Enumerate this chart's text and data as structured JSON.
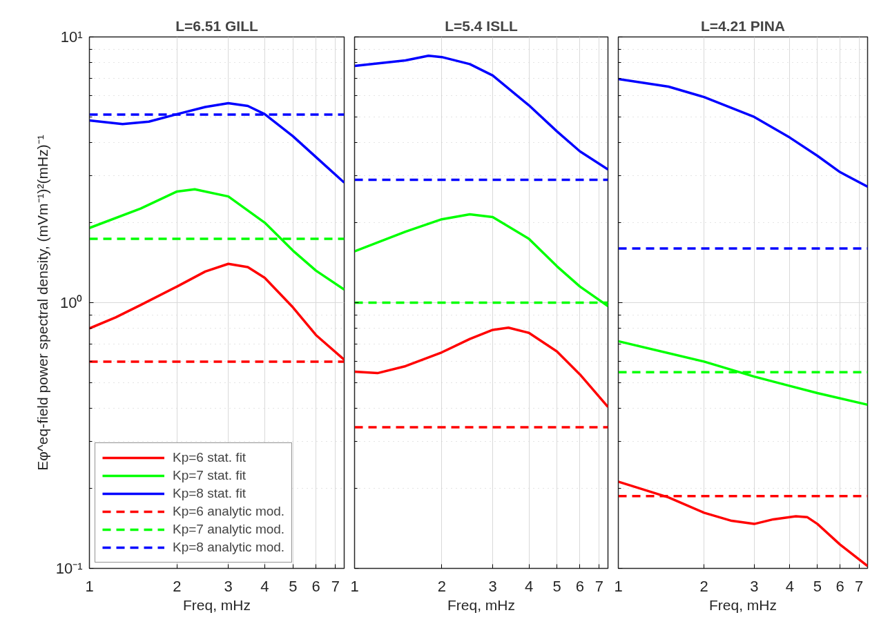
{
  "chart_data": [
    {
      "type": "line",
      "title": "L=6.51 GILL",
      "xlabel": "Freq, mHz",
      "ylabel": "Eφ^eq-field power spectral density, (mVm⁻¹)²(mHz)⁻¹",
      "log": "xy",
      "grid": true,
      "legend": "bottom left",
      "xlim": [
        1,
        7.5
      ],
      "ylim": [
        0.1,
        10
      ],
      "xticks": [
        1,
        2,
        3,
        4,
        5,
        6,
        7
      ],
      "yticks": [
        {
          "value": 0.1,
          "label": "10⁻¹"
        },
        {
          "value": 1,
          "label": "10⁰"
        },
        {
          "value": 10,
          "label": "10¹"
        }
      ],
      "series": [
        {
          "name": "Kp=6 stat. fit",
          "color": "#ff0000",
          "line_style": "solid",
          "x": [
            1,
            1.23,
            1.5,
            2,
            2.5,
            3,
            3.5,
            4,
            5,
            6,
            7.5
          ],
          "values": [
            0.8,
            0.88,
            0.98,
            1.15,
            1.31,
            1.4,
            1.36,
            1.24,
            0.96,
            0.755,
            0.61
          ]
        },
        {
          "name": "Kp=7 stat. fit",
          "color": "#00ff00",
          "line_style": "solid",
          "x": [
            1,
            1.5,
            2,
            2.3,
            3,
            4,
            5,
            6,
            7.5
          ],
          "values": [
            1.91,
            2.26,
            2.62,
            2.67,
            2.51,
            2.0,
            1.57,
            1.32,
            1.12
          ]
        },
        {
          "name": "Kp=8 stat. fit",
          "color": "#0000ff",
          "line_style": "solid",
          "x": [
            1,
            1.3,
            1.6,
            2,
            2.5,
            3,
            3.5,
            4,
            5,
            6,
            7.5
          ],
          "values": [
            4.85,
            4.7,
            4.8,
            5.12,
            5.45,
            5.63,
            5.5,
            5.12,
            4.23,
            3.53,
            2.83
          ]
        },
        {
          "name": "Kp=6 analytic mod.",
          "color": "#ff0000",
          "line_style": "dashed",
          "x": [
            1,
            7.5
          ],
          "values": [
            0.6,
            0.6
          ]
        },
        {
          "name": "Kp=7 analytic mod.",
          "color": "#00ff00",
          "line_style": "dashed",
          "x": [
            1,
            7.5
          ],
          "values": [
            1.74,
            1.74
          ]
        },
        {
          "name": "Kp=8 analytic mod.",
          "color": "#0000ff",
          "line_style": "dashed",
          "x": [
            1,
            7.5
          ],
          "values": [
            5.1,
            5.1
          ]
        }
      ]
    },
    {
      "type": "line",
      "title": "L=5.4 ISLL",
      "xlabel": "Freq, mHz",
      "log": "xy",
      "grid": true,
      "tick_labels": "x",
      "xlim": [
        1,
        7.5
      ],
      "ylim": [
        0.1,
        10
      ],
      "xticks": [
        1,
        2,
        3,
        4,
        5,
        6,
        7
      ],
      "yticks": [
        0.1,
        1,
        10
      ],
      "series": [
        {
          "color": "#ff0000",
          "line_style": "solid",
          "x": [
            1,
            1.2,
            1.5,
            2,
            2.5,
            3,
            3.4,
            4,
            5,
            6,
            7.5
          ],
          "values": [
            0.55,
            0.543,
            0.577,
            0.65,
            0.73,
            0.79,
            0.805,
            0.77,
            0.655,
            0.537,
            0.405
          ]
        },
        {
          "color": "#00ff00",
          "line_style": "solid",
          "x": [
            1,
            1.5,
            2,
            2.5,
            3,
            4,
            5,
            6,
            7.5
          ],
          "values": [
            1.56,
            1.85,
            2.06,
            2.15,
            2.1,
            1.74,
            1.37,
            1.15,
            0.97
          ]
        },
        {
          "color": "#0000ff",
          "line_style": "solid",
          "x": [
            1,
            1.5,
            1.8,
            2,
            2.5,
            3,
            4,
            5,
            6,
            7.5
          ],
          "values": [
            7.78,
            8.16,
            8.5,
            8.4,
            7.9,
            7.16,
            5.53,
            4.41,
            3.71,
            3.17
          ]
        },
        {
          "color": "#ff0000",
          "line_style": "dashed",
          "x": [
            1,
            7.5
          ],
          "values": [
            0.34,
            0.34
          ]
        },
        {
          "color": "#00ff00",
          "line_style": "dashed",
          "x": [
            1,
            7.5
          ],
          "values": [
            1.0,
            1.0
          ]
        },
        {
          "color": "#0000ff",
          "line_style": "dashed",
          "x": [
            1,
            7.5
          ],
          "values": [
            2.9,
            2.9
          ]
        }
      ]
    },
    {
      "type": "line",
      "title": "L=4.21 PINA",
      "xlabel": "Freq, mHz",
      "log": "xy",
      "grid": true,
      "tick_labels": "x",
      "xlim": [
        1,
        7.5
      ],
      "ylim": [
        0.1,
        10
      ],
      "xticks": [
        1,
        2,
        3,
        4,
        5,
        6,
        7
      ],
      "yticks": [
        0.1,
        1,
        10
      ],
      "series": [
        {
          "color": "#ff0000",
          "line_style": "solid",
          "x": [
            1,
            1.5,
            2,
            2.5,
            3,
            3.5,
            4.2,
            4.6,
            5,
            6,
            7.5
          ],
          "values": [
            0.212,
            0.185,
            0.162,
            0.151,
            0.147,
            0.153,
            0.157,
            0.156,
            0.147,
            0.123,
            0.102
          ]
        },
        {
          "color": "#00ff00",
          "line_style": "solid",
          "x": [
            1,
            2,
            3,
            4,
            5,
            7.5
          ],
          "values": [
            0.716,
            0.6,
            0.527,
            0.486,
            0.457,
            0.413
          ]
        },
        {
          "color": "#0000ff",
          "line_style": "solid",
          "x": [
            1,
            1.5,
            2,
            3,
            4,
            5,
            6,
            7.5
          ],
          "values": [
            6.94,
            6.5,
            5.94,
            5.0,
            4.18,
            3.57,
            3.1,
            2.73
          ]
        },
        {
          "color": "#ff0000",
          "line_style": "dashed",
          "x": [
            1,
            7.5
          ],
          "values": [
            0.187,
            0.187
          ]
        },
        {
          "color": "#00ff00",
          "line_style": "dashed",
          "x": [
            1,
            7.5
          ],
          "values": [
            0.547,
            0.547
          ]
        },
        {
          "color": "#0000ff",
          "line_style": "dashed",
          "x": [
            1,
            7.5
          ],
          "values": [
            1.6,
            1.6
          ]
        }
      ]
    }
  ]
}
